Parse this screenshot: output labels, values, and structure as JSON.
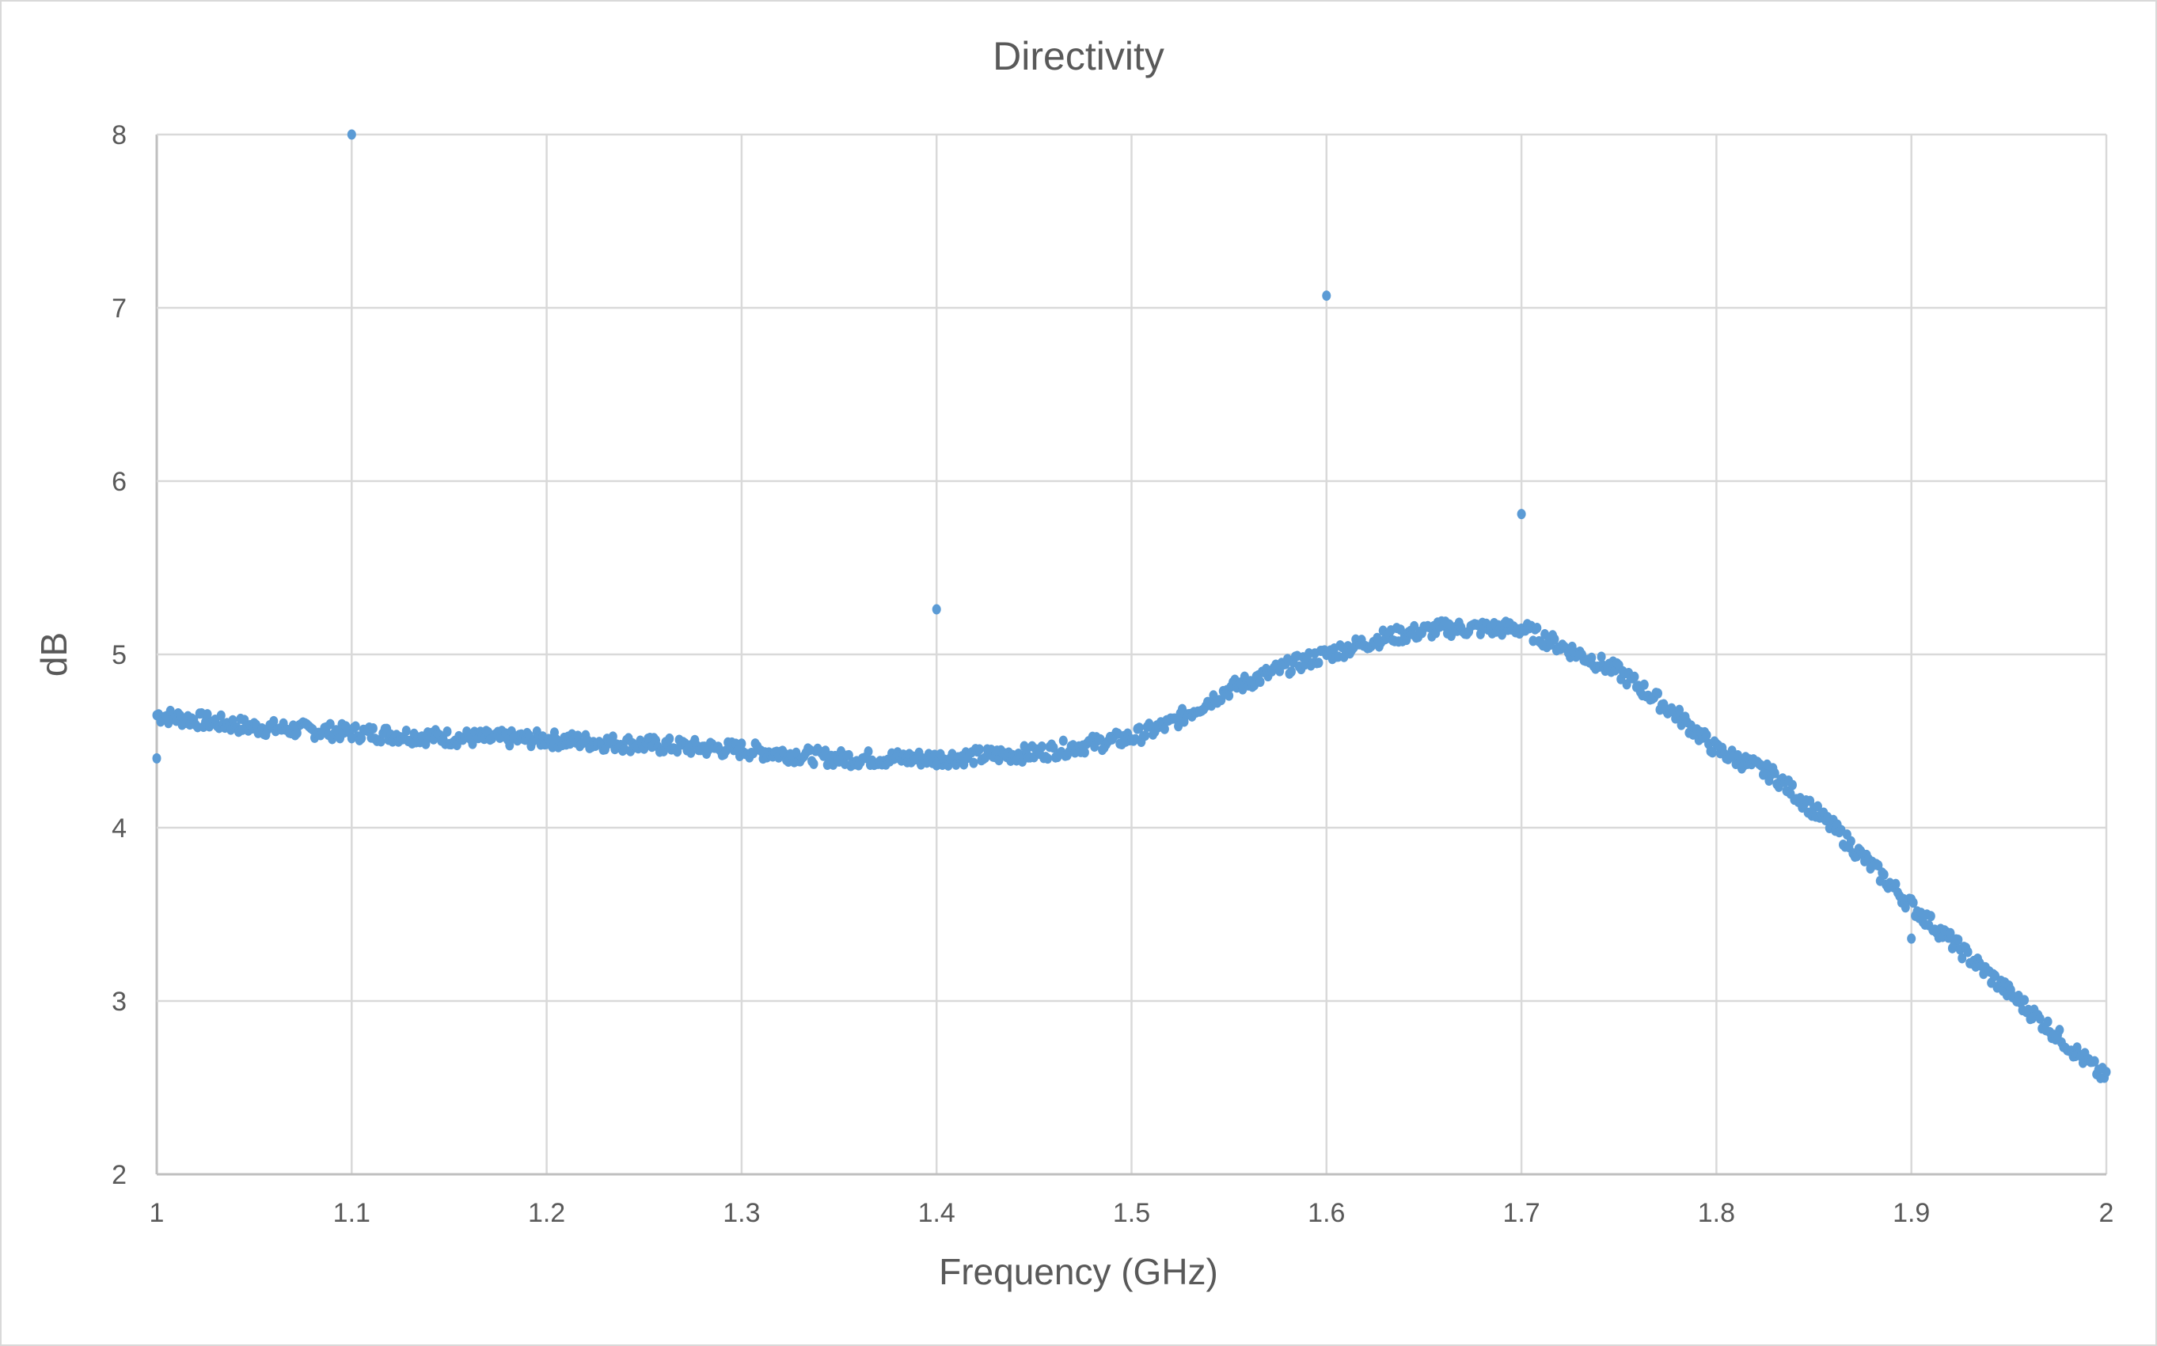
{
  "chart_data": {
    "type": "scatter",
    "title": "Directivity",
    "xlabel": "Frequency (GHz)",
    "ylabel": "dB",
    "xlim": [
      1,
      2
    ],
    "ylim": [
      2,
      8
    ],
    "xticks": [
      "1",
      "1.1",
      "1.2",
      "1.3",
      "1.4",
      "1.5",
      "1.6",
      "1.7",
      "1.8",
      "1.9",
      "2"
    ],
    "yticks": [
      "2",
      "3",
      "4",
      "5",
      "6",
      "7",
      "8"
    ],
    "grid": true,
    "legend": "none",
    "marker_color": "#5B9BD5",
    "series": [
      {
        "name": "Directivity",
        "curve_x": [
          1.0,
          1.05,
          1.1,
          1.15,
          1.2,
          1.25,
          1.3,
          1.35,
          1.4,
          1.45,
          1.5,
          1.52,
          1.55,
          1.58,
          1.6,
          1.63,
          1.66,
          1.7,
          1.72,
          1.75,
          1.78,
          1.8,
          1.83,
          1.86,
          1.9,
          1.93,
          1.96,
          2.0
        ],
        "curve_y": [
          4.65,
          4.58,
          4.55,
          4.52,
          4.51,
          4.48,
          4.45,
          4.4,
          4.4,
          4.43,
          4.52,
          4.6,
          4.8,
          4.93,
          5.0,
          5.1,
          5.15,
          5.15,
          5.05,
          4.9,
          4.65,
          4.45,
          4.3,
          4.0,
          3.55,
          3.25,
          2.95,
          2.55
        ],
        "outliers": [
          {
            "x": 1.0,
            "y": 4.4
          },
          {
            "x": 1.1,
            "y": 8.0
          },
          {
            "x": 1.4,
            "y": 5.26
          },
          {
            "x": 1.4,
            "y": 4.36
          },
          {
            "x": 1.6,
            "y": 7.07
          },
          {
            "x": 1.7,
            "y": 5.81
          },
          {
            "x": 1.9,
            "y": 3.36
          }
        ]
      }
    ]
  }
}
